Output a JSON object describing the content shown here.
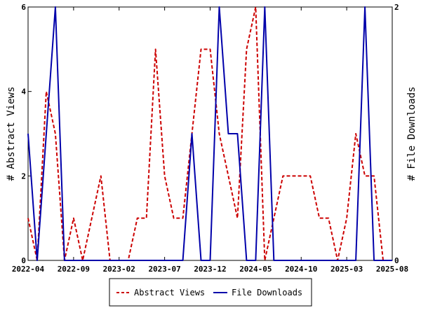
{
  "chart_data": {
    "type": "line",
    "x": [
      "2022-04",
      "2022-05",
      "2022-06",
      "2022-07",
      "2022-08",
      "2022-09",
      "2022-10",
      "2022-11",
      "2022-12",
      "2023-01",
      "2023-02",
      "2023-03",
      "2023-04",
      "2023-05",
      "2023-06",
      "2023-07",
      "2023-08",
      "2023-09",
      "2023-10",
      "2023-11",
      "2023-12",
      "2024-01",
      "2024-02",
      "2024-03",
      "2024-04",
      "2024-05",
      "2024-06",
      "2024-07",
      "2024-08",
      "2024-09",
      "2024-10",
      "2024-11",
      "2024-12",
      "2025-01",
      "2025-02",
      "2025-03",
      "2025-04",
      "2025-05",
      "2025-06",
      "2025-07",
      "2025-08"
    ],
    "x_tick_labels": [
      "2022-04",
      "2022-09",
      "2023-02",
      "2023-07",
      "2023-12",
      "2024-05",
      "2024-10",
      "2025-03",
      "2025-08"
    ],
    "series": [
      {
        "name": "Abstract Views",
        "axis": "left",
        "color": "#cc0000",
        "style": "dashed",
        "values": [
          1,
          0,
          4,
          3,
          0,
          1,
          0,
          1,
          2,
          0,
          0,
          0,
          1,
          1,
          5,
          2,
          1,
          1,
          3,
          5,
          5,
          3,
          2,
          1,
          5,
          6,
          0,
          1,
          2,
          2,
          2,
          2,
          1,
          1,
          0,
          1,
          3,
          2,
          2,
          0,
          0
        ]
      },
      {
        "name": "File Downloads",
        "axis": "right",
        "color": "#0000aa",
        "style": "solid",
        "values": [
          1,
          0,
          1,
          2,
          0,
          0,
          0,
          0,
          0,
          0,
          0,
          0,
          0,
          0,
          0,
          0,
          0,
          0,
          1,
          0,
          0,
          2,
          1,
          1,
          0,
          0,
          2,
          0,
          0,
          0,
          0,
          0,
          0,
          0,
          0,
          0,
          0,
          2,
          0,
          0,
          0
        ]
      }
    ],
    "ylabel_left": "# Abstract Views",
    "ylabel_right": "# File Downloads",
    "ylim_left": [
      0,
      6
    ],
    "ylim_right": [
      0,
      2
    ],
    "yticks_left": [
      0,
      2,
      4,
      6
    ],
    "yticks_right": [
      0,
      2
    ],
    "grid": false,
    "legend_position": "bottom-center"
  }
}
